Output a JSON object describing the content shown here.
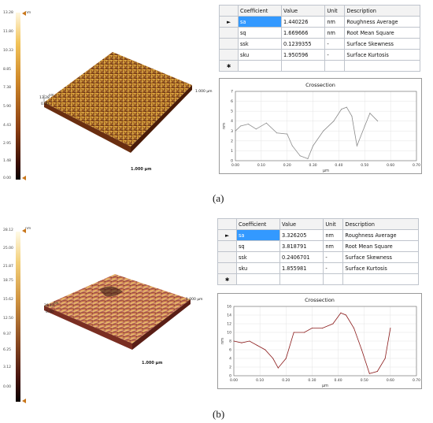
{
  "panels": [
    {
      "caption": "(a)",
      "colorbar": {
        "unit": "nm",
        "ticks": [
          "13.28",
          "11.80",
          "10.33",
          "8.85",
          "7.38",
          "5.90",
          "4.43",
          "2.95",
          "1.48",
          "0.00"
        ]
      },
      "surface": {
        "z_label": "13.28",
        "z_unit": "nm",
        "z_zero": "0.00",
        "scale_label": "1.000 µm",
        "side_label": "1.000 µm"
      },
      "table": {
        "headers": [
          "Coefficient",
          "Value",
          "Unit",
          "Description"
        ],
        "rows": [
          {
            "marker": "►",
            "coef": "sa",
            "value": "1.440226",
            "unit": "nm",
            "desc": "Roughness Average"
          },
          {
            "marker": "",
            "coef": "sq",
            "value": "1.669666",
            "unit": "nm",
            "desc": "Root Mean Square"
          },
          {
            "marker": "",
            "coef": "ssk",
            "value": "0.1239355",
            "unit": "-",
            "desc": "Surface Skewness"
          },
          {
            "marker": "",
            "coef": "sku",
            "value": "1.950596",
            "unit": "-",
            "desc": "Surface Kurtosis"
          },
          {
            "marker": "✱",
            "coef": "",
            "value": "",
            "unit": "",
            "desc": ""
          }
        ]
      },
      "chart_data": {
        "type": "line",
        "title": "Crossection",
        "xlabel": "µm",
        "ylabel": "nm",
        "xlim": [
          0.0,
          0.7
        ],
        "ylim": [
          0,
          7
        ],
        "x_ticks": [
          "0.00",
          "0.10",
          "0.20",
          "0.30",
          "0.40",
          "0.50",
          "0.60",
          "0.70"
        ],
        "y_ticks": [
          "0",
          "1",
          "2",
          "3",
          "4",
          "5",
          "6",
          "7"
        ],
        "line_color": "#8a8a8a",
        "x": [
          0.0,
          0.02,
          0.05,
          0.08,
          0.12,
          0.16,
          0.2,
          0.22,
          0.25,
          0.28,
          0.3,
          0.34,
          0.38,
          0.41,
          0.43,
          0.45,
          0.47,
          0.5,
          0.52,
          0.55
        ],
        "y": [
          3.0,
          3.5,
          3.7,
          3.2,
          3.8,
          2.8,
          2.7,
          1.5,
          0.5,
          0.2,
          1.5,
          3.0,
          4.0,
          5.2,
          5.4,
          4.5,
          1.5,
          3.5,
          4.8,
          4.0
        ]
      }
    },
    {
      "caption": "(b)",
      "colorbar": {
        "unit": "nm",
        "ticks": [
          "28.12",
          "25.00",
          "21.87",
          "18.75",
          "15.62",
          "12.50",
          "9.37",
          "6.25",
          "3.12",
          "0.00"
        ]
      },
      "surface": {
        "z_label": "28.12",
        "z_unit": "nm",
        "z_zero": "0.00",
        "scale_label": "1.000 µm",
        "side_label": "1.000 µm"
      },
      "table": {
        "headers": [
          "Coefficient",
          "Value",
          "Unit",
          "Description"
        ],
        "rows": [
          {
            "marker": "►",
            "coef": "sa",
            "value": "3.326205",
            "unit": "nm",
            "desc": "Roughness Average"
          },
          {
            "marker": "",
            "coef": "sq",
            "value": "3.818791",
            "unit": "nm",
            "desc": "Root Mean Square"
          },
          {
            "marker": "",
            "coef": "ssk",
            "value": "0.2406701",
            "unit": "-",
            "desc": "Surface Skewness"
          },
          {
            "marker": "",
            "coef": "sku",
            "value": "1.855981",
            "unit": "-",
            "desc": "Surface Kurtosis"
          },
          {
            "marker": "✱",
            "coef": "",
            "value": "",
            "unit": "",
            "desc": ""
          }
        ]
      },
      "chart_data": {
        "type": "line",
        "title": "Crossection",
        "xlabel": "µm",
        "ylabel": "nm",
        "xlim": [
          0.0,
          0.7
        ],
        "ylim": [
          0,
          16
        ],
        "x_ticks": [
          "0.00",
          "0.10",
          "0.20",
          "0.30",
          "0.40",
          "0.50",
          "0.60",
          "0.70"
        ],
        "y_ticks": [
          "0",
          "2",
          "4",
          "6",
          "8",
          "10",
          "12",
          "14",
          "16"
        ],
        "line_color": "#8b1a1a",
        "x": [
          0.0,
          0.03,
          0.06,
          0.09,
          0.12,
          0.15,
          0.17,
          0.2,
          0.23,
          0.27,
          0.3,
          0.34,
          0.38,
          0.41,
          0.43,
          0.46,
          0.49,
          0.52,
          0.55,
          0.58,
          0.6
        ],
        "y": [
          8.0,
          7.6,
          8.0,
          7.0,
          6.0,
          4.0,
          1.8,
          4.0,
          10.0,
          10.0,
          11.0,
          11.0,
          12.0,
          14.5,
          14.0,
          11.0,
          6.0,
          0.5,
          1.0,
          4.0,
          11.0
        ]
      }
    }
  ]
}
